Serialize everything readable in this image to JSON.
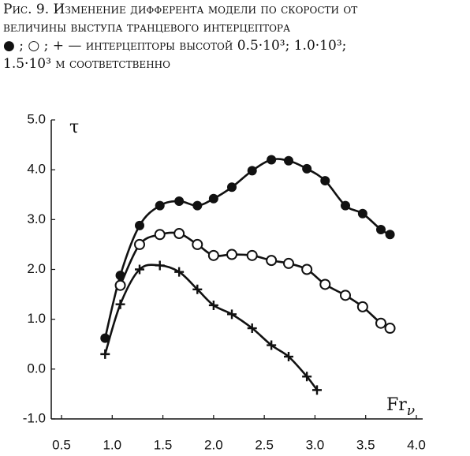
{
  "chart_data": {
    "type": "scatter-curve",
    "title": "Рис. 9. Изменение дифферента модели по скорости от величины выступа транцевого интерцептора",
    "caption": "● ; ○ ; + — интерцепторы высотой 0.5·10³; 1.0·10³; 1.5·10³ м соответственно",
    "y_label": "τ",
    "x_label": "Fr",
    "x_label_subscript": "ν",
    "xlim": [
      0.5,
      4.0
    ],
    "xticks": [
      0.5,
      {
        "value": 1,
        "label": "1.0"
      },
      1.5,
      {
        "value": 2,
        "label": "2.0"
      },
      2.5,
      {
        "value": 3,
        "label": "3.0"
      },
      3.5,
      {
        "value": 4,
        "label": "4.0"
      }
    ],
    "ylim": [
      -1,
      5
    ],
    "yticks": [
      {
        "value": -1,
        "label": "-1.0"
      },
      {
        "value": 0,
        "label": "0.0"
      },
      {
        "value": 1,
        "label": "1.0"
      },
      {
        "value": 2,
        "label": "2.0"
      },
      {
        "value": 3,
        "label": "3.0"
      },
      {
        "value": 4,
        "label": "4.0"
      },
      {
        "value": 5,
        "label": "5.0"
      }
    ],
    "series": [
      {
        "marker": "filled-circle",
        "color": "#111111",
        "x": [
          0.93,
          1.08,
          1.27,
          1.47,
          1.66,
          1.84,
          2.0,
          2.18,
          2.38,
          2.57,
          2.74,
          2.92,
          3.1,
          3.3,
          3.47,
          3.65,
          3.74
        ],
        "values": [
          0.62,
          1.88,
          2.88,
          3.28,
          3.37,
          3.28,
          3.42,
          3.65,
          3.98,
          4.2,
          4.18,
          4.02,
          3.78,
          3.28,
          3.12,
          2.8,
          2.7
        ]
      },
      {
        "marker": "open-circle",
        "color": "#111111",
        "x": [
          1.08,
          1.27,
          1.47,
          1.66,
          1.84,
          2.0,
          2.18,
          2.38,
          2.57,
          2.74,
          2.92,
          3.1,
          3.3,
          3.47,
          3.65,
          3.74
        ],
        "values": [
          1.68,
          2.5,
          2.7,
          2.72,
          2.5,
          2.28,
          2.3,
          2.28,
          2.18,
          2.12,
          2.0,
          1.7,
          1.48,
          1.25,
          0.92,
          0.82
        ]
      },
      {
        "marker": "plus",
        "color": "#111111",
        "x": [
          0.93,
          1.08,
          1.27,
          1.47,
          1.66,
          1.84,
          2.0,
          2.18,
          2.38,
          2.57,
          2.74,
          2.92,
          3.02
        ],
        "values": [
          0.3,
          1.3,
          2.0,
          2.08,
          1.95,
          1.6,
          1.28,
          1.1,
          0.82,
          0.48,
          0.25,
          -0.15,
          -0.42
        ]
      }
    ]
  }
}
